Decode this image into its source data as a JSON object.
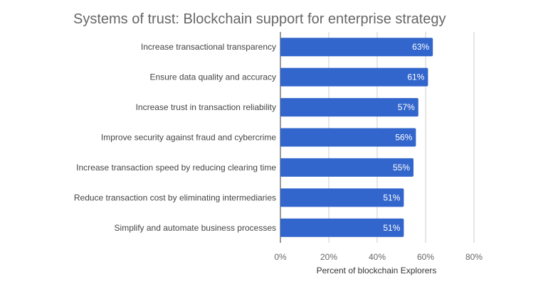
{
  "chart_data": {
    "type": "bar",
    "orientation": "horizontal",
    "title": "Systems of trust: Blockchain support for enterprise strategy",
    "xlabel": "Percent of blockchain Explorers",
    "ylabel": "",
    "categories": [
      "Increase transactional transparency",
      "Ensure data quality and accuracy",
      "Increase trust in transaction reliability",
      "Improve security against fraud and cybercrime",
      "Increase transaction speed by reducing clearing time",
      "Reduce transaction cost by eliminating intermediaries",
      "Simplify and automate business processes"
    ],
    "values": [
      63,
      61,
      57,
      56,
      55,
      51,
      51
    ],
    "value_labels": [
      "63%",
      "61%",
      "57%",
      "56%",
      "55%",
      "51%",
      "51%"
    ],
    "xlim": [
      0,
      80
    ],
    "xticks": [
      0,
      20,
      40,
      60,
      80
    ],
    "xtick_labels": [
      "0%",
      "20%",
      "40%",
      "60%",
      "80%"
    ],
    "grid": true,
    "legend": "none",
    "bar_color": "#3366cc"
  }
}
